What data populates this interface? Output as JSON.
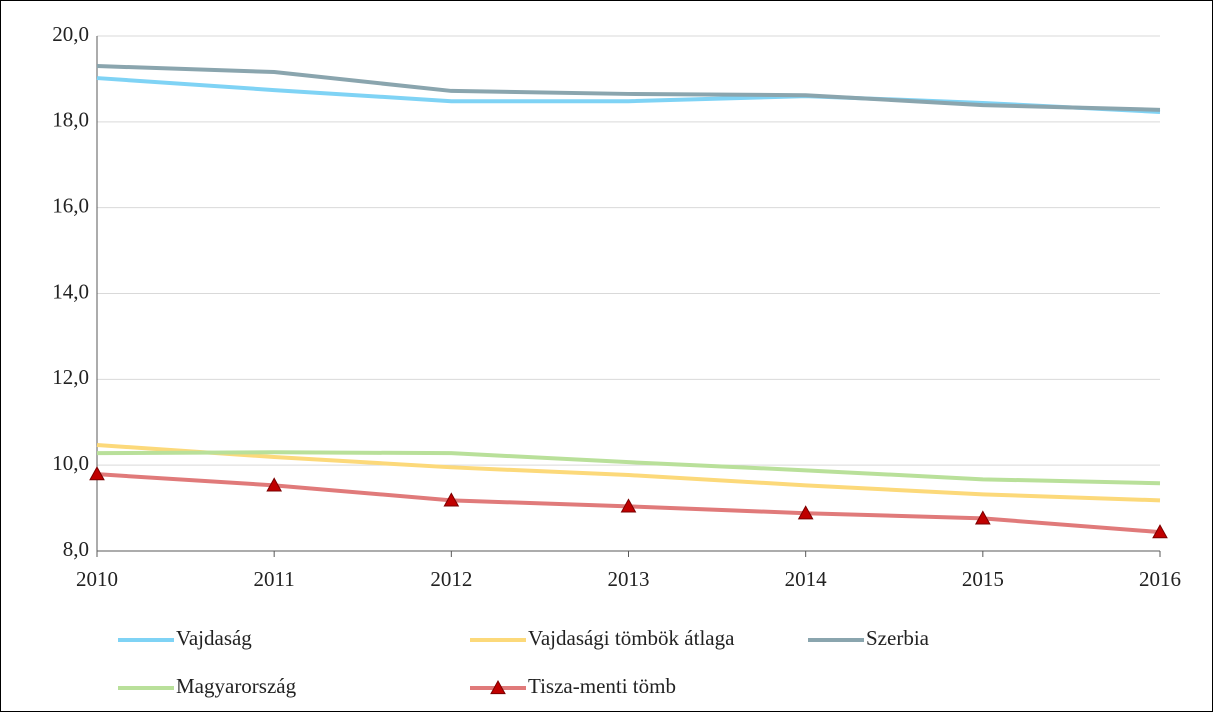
{
  "chart_data": {
    "type": "line",
    "x": [
      2010,
      2011,
      2012,
      2013,
      2014,
      2015,
      2016
    ],
    "xlim": [
      2010,
      2016
    ],
    "xticks": [
      2010,
      2011,
      2012,
      2013,
      2014,
      2015,
      2016
    ],
    "ylim": [
      8,
      20
    ],
    "yticks": [
      {
        "value": 8,
        "label": "8,0"
      },
      {
        "value": 10,
        "label": "10,0"
      },
      {
        "value": 12,
        "label": "12,0"
      },
      {
        "value": 14,
        "label": "14,0"
      },
      {
        "value": 16,
        "label": "16,0"
      },
      {
        "value": 18,
        "label": "18,0"
      },
      {
        "value": 20,
        "label": "20,0"
      }
    ],
    "grid": true,
    "legend": "bottom",
    "series": [
      {
        "name": "Vajdaság",
        "color": "#7fd3f5",
        "values": [
          19.02,
          18.74,
          18.48,
          18.48,
          18.6,
          18.44,
          18.23
        ]
      },
      {
        "name": "Vajdasági tömbök átlaga",
        "color": "#fcd97a",
        "values": [
          10.47,
          10.19,
          9.95,
          9.77,
          9.53,
          9.32,
          9.18
        ]
      },
      {
        "name": "Szerbia",
        "color": "#8aa5ae",
        "values": [
          19.3,
          19.16,
          18.72,
          18.65,
          18.62,
          18.39,
          18.28
        ]
      },
      {
        "name": "Magyarország",
        "color": "#b9e09a",
        "values": [
          10.28,
          10.3,
          10.28,
          10.07,
          9.88,
          9.67,
          9.58
        ]
      },
      {
        "name": "Tisza-menti tömb",
        "color": "#e07a7a",
        "marker": "triangle",
        "marker_color": "#c00000",
        "values": [
          9.79,
          9.53,
          9.18,
          9.04,
          8.88,
          8.76,
          8.44
        ]
      }
    ]
  }
}
